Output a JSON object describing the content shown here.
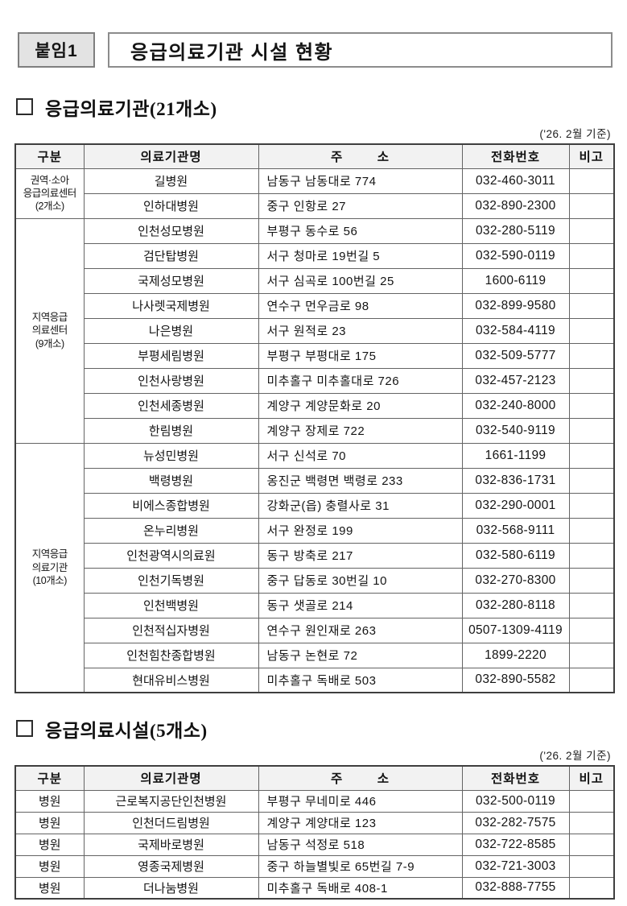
{
  "header": {
    "badge": "붙임1",
    "title": "응급의료기관 시설 현황"
  },
  "colors": {
    "badge_bg": "#e3e3e3",
    "box_border": "#8c8c8c",
    "table_border": "#3f3f3f",
    "table_header_bg": "#f2f2f2",
    "text": "#141414"
  },
  "sections": [
    {
      "heading": "응급의료기관(21개소)",
      "date_note": "('26. 2월 기준)",
      "columns": [
        "구분",
        "의료기관명",
        "주        소",
        "전화번호",
        "비고"
      ],
      "groups": [
        {
          "label_lines": [
            "권역·소아",
            "응급의료센터",
            "(2개소)"
          ],
          "rows": [
            {
              "name": "길병원",
              "address": "남동구 남동대로 774",
              "phone": "032-460-3011",
              "note": ""
            },
            {
              "name": "인하대병원",
              "address": "중구 인항로 27",
              "phone": "032-890-2300",
              "note": ""
            }
          ]
        },
        {
          "label_lines": [
            "지역응급",
            "의료센터",
            "(9개소)"
          ],
          "rows": [
            {
              "name": "인천성모병원",
              "address": "부평구 동수로 56",
              "phone": "032-280-5119",
              "note": ""
            },
            {
              "name": "검단탑병원",
              "address": "서구 청마로 19번길 5",
              "phone": "032-590-0119",
              "note": ""
            },
            {
              "name": "국제성모병원",
              "address": "서구 심곡로 100번길 25",
              "phone": "1600-6119",
              "note": ""
            },
            {
              "name": "나사렛국제병원",
              "address": "연수구 먼우금로 98",
              "phone": "032-899-9580",
              "note": ""
            },
            {
              "name": "나은병원",
              "address": "서구 원적로 23",
              "phone": "032-584-4119",
              "note": ""
            },
            {
              "name": "부평세림병원",
              "address": "부평구 부평대로 175",
              "phone": "032-509-5777",
              "note": ""
            },
            {
              "name": "인천사랑병원",
              "address": "미추홀구 미추홀대로 726",
              "phone": "032-457-2123",
              "note": ""
            },
            {
              "name": "인천세종병원",
              "address": "계양구 계양문화로 20",
              "phone": "032-240-8000",
              "note": ""
            },
            {
              "name": "한림병원",
              "address": "계양구 장제로 722",
              "phone": "032-540-9119",
              "note": ""
            }
          ]
        },
        {
          "label_lines": [
            "지역응급",
            "의료기관",
            "(10개소)"
          ],
          "rows": [
            {
              "name": "뉴성민병원",
              "address": "서구 신석로 70",
              "phone": "1661-1199",
              "note": ""
            },
            {
              "name": "백령병원",
              "address": "옹진군 백령면 백령로 233",
              "phone": "032-836-1731",
              "note": ""
            },
            {
              "name": "비에스종합병원",
              "address": "강화군(읍) 충렬사로 31",
              "phone": "032-290-0001",
              "note": ""
            },
            {
              "name": "온누리병원",
              "address": "서구 완정로 199",
              "phone": "032-568-9111",
              "note": ""
            },
            {
              "name": "인천광역시의료원",
              "address": "동구 방축로 217",
              "phone": "032-580-6119",
              "note": ""
            },
            {
              "name": "인천기독병원",
              "address": "중구 답동로 30번길 10",
              "phone": "032-270-8300",
              "note": ""
            },
            {
              "name": "인천백병원",
              "address": "동구 샛골로 214",
              "phone": "032-280-8118",
              "note": ""
            },
            {
              "name": "인천적십자병원",
              "address": "연수구 원인재로 263",
              "phone": "0507-1309-4119",
              "note": ""
            },
            {
              "name": "인천힘찬종합병원",
              "address": "남동구 논현로 72",
              "phone": "1899-2220",
              "note": ""
            },
            {
              "name": "현대유비스병원",
              "address": "미추홀구 독배로 503",
              "phone": "032-890-5582",
              "note": ""
            }
          ]
        }
      ]
    },
    {
      "heading": "응급의료시설(5개소)",
      "date_note": "('26. 2월 기준)",
      "columns": [
        "구분",
        "의료기관명",
        "주        소",
        "전화번호",
        "비고"
      ],
      "rows": [
        {
          "category": "병원",
          "name": "근로복지공단인천병원",
          "address": "부평구 무네미로 446",
          "phone": "032-500-0119",
          "note": ""
        },
        {
          "category": "병원",
          "name": "인천더드림병원",
          "address": "계양구 계양대로 123",
          "phone": "032-282-7575",
          "note": ""
        },
        {
          "category": "병원",
          "name": "국제바로병원",
          "address": "남동구 석정로 518",
          "phone": "032-722-8585",
          "note": ""
        },
        {
          "category": "병원",
          "name": "영종국제병원",
          "address": "중구 하늘별빛로 65번길 7-9",
          "phone": "032-721-3003",
          "note": ""
        },
        {
          "category": "병원",
          "name": "더나눔병원",
          "address": "미추홀구 독배로 408-1",
          "phone": "032-888-7755",
          "note": ""
        }
      ]
    }
  ]
}
